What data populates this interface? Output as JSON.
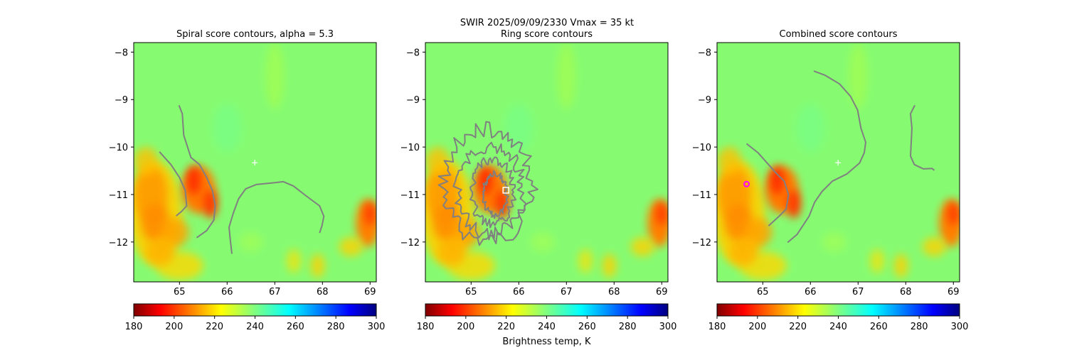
{
  "suptitle": "SWIR  2025/09/09/2330    Vmax = 35 kt",
  "colors": {
    "contour": "#808080",
    "plus_marker": "#ffffff",
    "square_marker": "#ffffff",
    "circle_marker": "#ff00ff",
    "background_field": "#86fb72"
  },
  "chart_data": [
    {
      "type": "heatmap",
      "title": "Spiral score contours, alpha =  5.3",
      "xlim": [
        64.04,
        69.13
      ],
      "ylim": [
        -12.84,
        -7.8
      ],
      "xticks": [
        65,
        66,
        67,
        68,
        69
      ],
      "xtick_labels": [
        "65",
        "66",
        "67",
        "68",
        "69"
      ],
      "yticks": [
        -8,
        -9,
        -10,
        -11,
        -12
      ],
      "ytick_labels": [
        "−8",
        "−9",
        "−10",
        "−11",
        "−12"
      ],
      "contours": [
        {
          "lon": [
            64.99,
            65.06,
            65.09,
            65.16,
            65.24,
            65.42,
            65.57,
            65.69,
            65.75,
            65.72,
            65.57,
            65.36
          ],
          "lat": [
            -9.12,
            -9.3,
            -9.75,
            -9.97,
            -10.22,
            -10.37,
            -10.64,
            -10.91,
            -11.24,
            -11.54,
            -11.76,
            -11.91
          ]
        },
        {
          "lon": [
            64.58,
            64.82,
            65.0,
            65.12,
            65.15,
            65.04,
            64.93
          ],
          "lat": [
            -10.1,
            -10.37,
            -10.64,
            -10.91,
            -11.24,
            -11.36,
            -11.45
          ]
        },
        {
          "lon": [
            66.1,
            66.07,
            66.04,
            66.13,
            66.24,
            66.39,
            66.61,
            66.91,
            67.18,
            67.39,
            67.66,
            67.94,
            68.03,
            67.99,
            67.94
          ],
          "lat": [
            -12.25,
            -11.99,
            -11.69,
            -11.39,
            -11.09,
            -10.88,
            -10.79,
            -10.76,
            -10.73,
            -10.82,
            -11.03,
            -11.24,
            -11.46,
            -11.66,
            -11.81
          ]
        }
      ],
      "markers": [
        {
          "shape": "plus",
          "lon": 66.58,
          "lat": -10.33
        }
      ],
      "colorbar": {
        "range": [
          180,
          300
        ],
        "ticks": [
          "180",
          "200",
          "220",
          "240",
          "260",
          "280",
          "300"
        ],
        "label": ""
      }
    },
    {
      "type": "heatmap",
      "title": "Ring score contours",
      "xlim": [
        64.04,
        69.13
      ],
      "ylim": [
        -12.84,
        -7.8
      ],
      "xticks": [
        65,
        66,
        67,
        68,
        69
      ],
      "xtick_labels": [
        "65",
        "66",
        "67",
        "68",
        "69"
      ],
      "yticks": [
        -8,
        -9,
        -10,
        -11,
        -12
      ],
      "ytick_labels": [
        "−8",
        "−9",
        "−10",
        "−11",
        "−12"
      ],
      "ring_contours": [
        {
          "center_lon": 65.35,
          "center_lat": -10.8,
          "r_lon": 0.95,
          "r_lat": 1.2
        },
        {
          "center_lon": 65.4,
          "center_lat": -10.9,
          "r_lon": 0.7,
          "r_lat": 0.95
        },
        {
          "center_lon": 65.45,
          "center_lat": -10.95,
          "r_lon": 0.45,
          "r_lat": 0.7
        },
        {
          "center_lon": 65.5,
          "center_lat": -11.0,
          "r_lon": 0.25,
          "r_lat": 0.45
        }
      ],
      "markers": [
        {
          "shape": "square",
          "lon": 65.73,
          "lat": -10.91
        }
      ],
      "colorbar": {
        "range": [
          180,
          300
        ],
        "ticks": [
          "180",
          "200",
          "220",
          "240",
          "260",
          "280",
          "300"
        ],
        "label": "Brightness temp, K"
      }
    },
    {
      "type": "heatmap",
      "title": "Combined score contours",
      "xlim": [
        64.04,
        69.13
      ],
      "ylim": [
        -12.84,
        -7.8
      ],
      "xticks": [
        65,
        66,
        67,
        68,
        69
      ],
      "xtick_labels": [
        "65",
        "66",
        "67",
        "68",
        "69"
      ],
      "yticks": [
        -8,
        -9,
        -10,
        -11,
        -12
      ],
      "ytick_labels": [
        "−8",
        "−9",
        "−10",
        "−11",
        "−12"
      ],
      "contours": [
        {
          "lon": [
            66.07,
            66.31,
            66.61,
            66.84,
            66.99,
            67.06,
            67.16,
            67.13,
            67.03,
            66.76,
            66.46,
            66.24,
            66.09,
            65.97,
            65.72,
            65.52
          ],
          "lat": [
            -8.4,
            -8.49,
            -8.67,
            -8.93,
            -9.22,
            -9.6,
            -9.9,
            -10.12,
            -10.34,
            -10.57,
            -10.72,
            -10.94,
            -11.16,
            -11.46,
            -11.84,
            -12.01
          ]
        },
        {
          "lon": [
            64.66,
            64.9,
            65.12,
            65.3,
            65.45,
            65.54,
            65.49,
            65.34,
            65.12
          ],
          "lat": [
            -9.93,
            -10.12,
            -10.37,
            -10.57,
            -10.72,
            -11.01,
            -11.31,
            -11.46,
            -11.66
          ]
        },
        {
          "lon": [
            68.19,
            68.1,
            68.13,
            68.1,
            68.18,
            68.37,
            68.55,
            68.6
          ],
          "lat": [
            -9.12,
            -9.3,
            -9.6,
            -10.19,
            -10.37,
            -10.46,
            -10.45,
            -10.49
          ]
        }
      ],
      "markers": [
        {
          "shape": "plus",
          "lon": 66.58,
          "lat": -10.33
        },
        {
          "shape": "circle",
          "lon": 64.66,
          "lat": -10.78
        }
      ],
      "colorbar": {
        "range": [
          180,
          300
        ],
        "ticks": [
          "180",
          "200",
          "220",
          "240",
          "260",
          "280",
          "300"
        ],
        "label": ""
      }
    }
  ]
}
